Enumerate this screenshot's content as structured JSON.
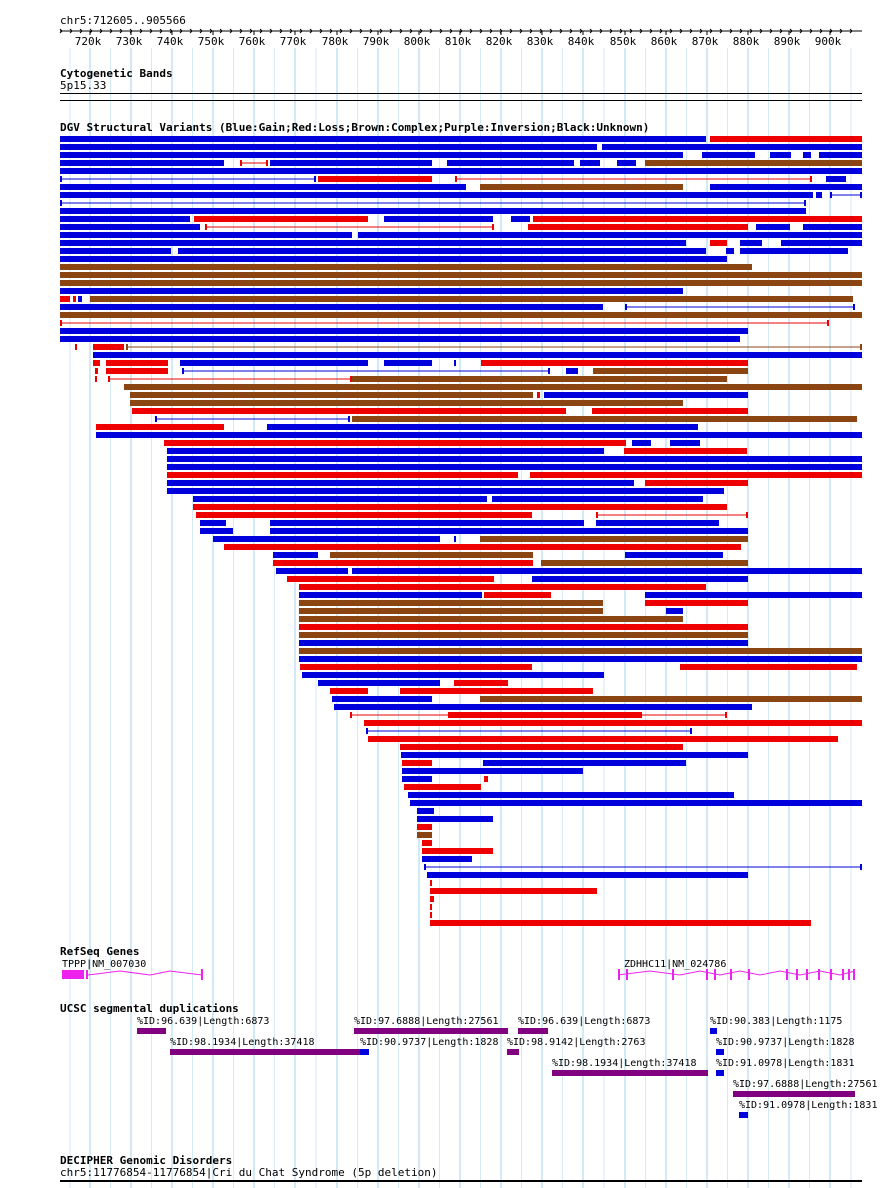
{
  "range_label": "chr5:712605..905566",
  "axis_ticks": [
    "720k",
    "730k",
    "740k",
    "750k",
    "760k",
    "770k",
    "780k",
    "790k",
    "800k",
    "810k",
    "820k",
    "830k",
    "840k",
    "850k",
    "860k",
    "870k",
    "880k",
    "890k",
    "900k"
  ],
  "cytoband": {
    "title": "Cytogenetic Bands",
    "band": "5p15.33"
  },
  "dgv": {
    "title": "DGV Structural Variants (Blue:Gain;Red:Loss;Brown:Complex;Purple:Inversion;Black:Unknown)"
  },
  "refseq": {
    "title": "RefSeq Genes",
    "genes": [
      {
        "label": "TPPP|NM_007030",
        "color": "#ee22ee"
      },
      {
        "label": "ZDHHC11|NM_024786",
        "color": "#ee22ee"
      }
    ]
  },
  "segdups": {
    "title": "UCSC segmental duplications",
    "items": [
      "%ID:96.639|Length:6873",
      "%ID:97.6888|Length:27561",
      "%ID:96.639|Length:6873",
      "%ID:90.383|Length:1175",
      "%ID:98.1934|Length:37418",
      "%ID:90.9737|Length:1828",
      "%ID:98.9142|Length:2763",
      "%ID:90.9737|Length:1828",
      "%ID:98.1934|Length:37418",
      "%ID:91.0978|Length:1831",
      "%ID:97.6888|Length:27561",
      "%ID:91.0978|Length:1831"
    ]
  },
  "decipher": {
    "title": "DECIPHER Genomic Disorders",
    "entry": "chr5:11776854-11776854|Cri du Chat Syndrome (5p deletion)"
  },
  "colors": {
    "gain": "#0000dd",
    "loss": "#ee0000",
    "complex": "#8b4513",
    "inversion": "#800080",
    "gridline": "#a6d4ec"
  }
}
